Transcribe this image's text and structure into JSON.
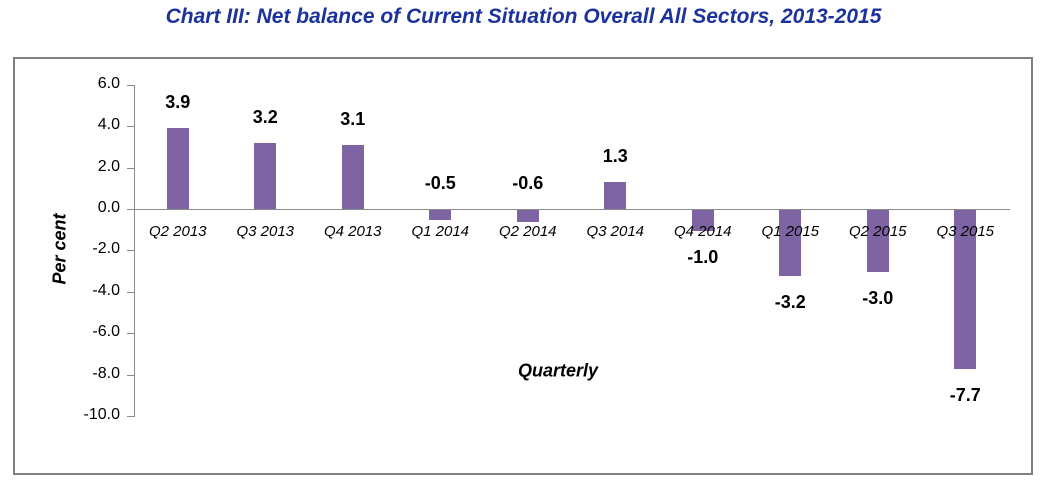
{
  "title": {
    "text": "Chart III: Net balance of Current Situation Overall All Sectors, 2013-2015",
    "color": "#1C339E"
  },
  "chart_data": {
    "type": "bar",
    "categories": [
      "Q2 2013",
      "Q3 2013",
      "Q4 2013",
      "Q1 2014",
      "Q2 2014",
      "Q3 2014",
      "Q4 2014",
      "Q1 2015",
      "Q2 2015",
      "Q3 2015"
    ],
    "values": [
      3.9,
      3.2,
      3.1,
      -0.5,
      -0.6,
      1.3,
      -1.0,
      -3.2,
      -3.0,
      -7.7
    ],
    "data_labels": [
      "3.9",
      "3.2",
      "3.1",
      "-0.5",
      "-0.6",
      "1.3",
      "-1.0",
      "-3.2",
      "-3.0",
      "-7.7"
    ],
    "label_side": [
      "above",
      "above",
      "above",
      "above",
      "above",
      "above",
      "below",
      "below",
      "below",
      "below"
    ],
    "title": "Chart III: Net balance of Current Situation Overall All Sectors, 2013-2015",
    "xlabel": "Quarterly",
    "ylabel": "Per cent",
    "ylim": [
      -10.0,
      6.0
    ],
    "yticks": [
      "6.0",
      "4.0",
      "2.0",
      "0.0",
      "-2.0",
      "-4.0",
      "-6.0",
      "-8.0",
      "-10.0"
    ],
    "ytick_values": [
      6.0,
      4.0,
      2.0,
      0.0,
      -2.0,
      -4.0,
      -6.0,
      -8.0,
      -10.0
    ],
    "grid": false,
    "legend": "none",
    "bar_color": "#7E64A2",
    "axis_color": "#8C8C8C",
    "frame_color": "#808080"
  }
}
